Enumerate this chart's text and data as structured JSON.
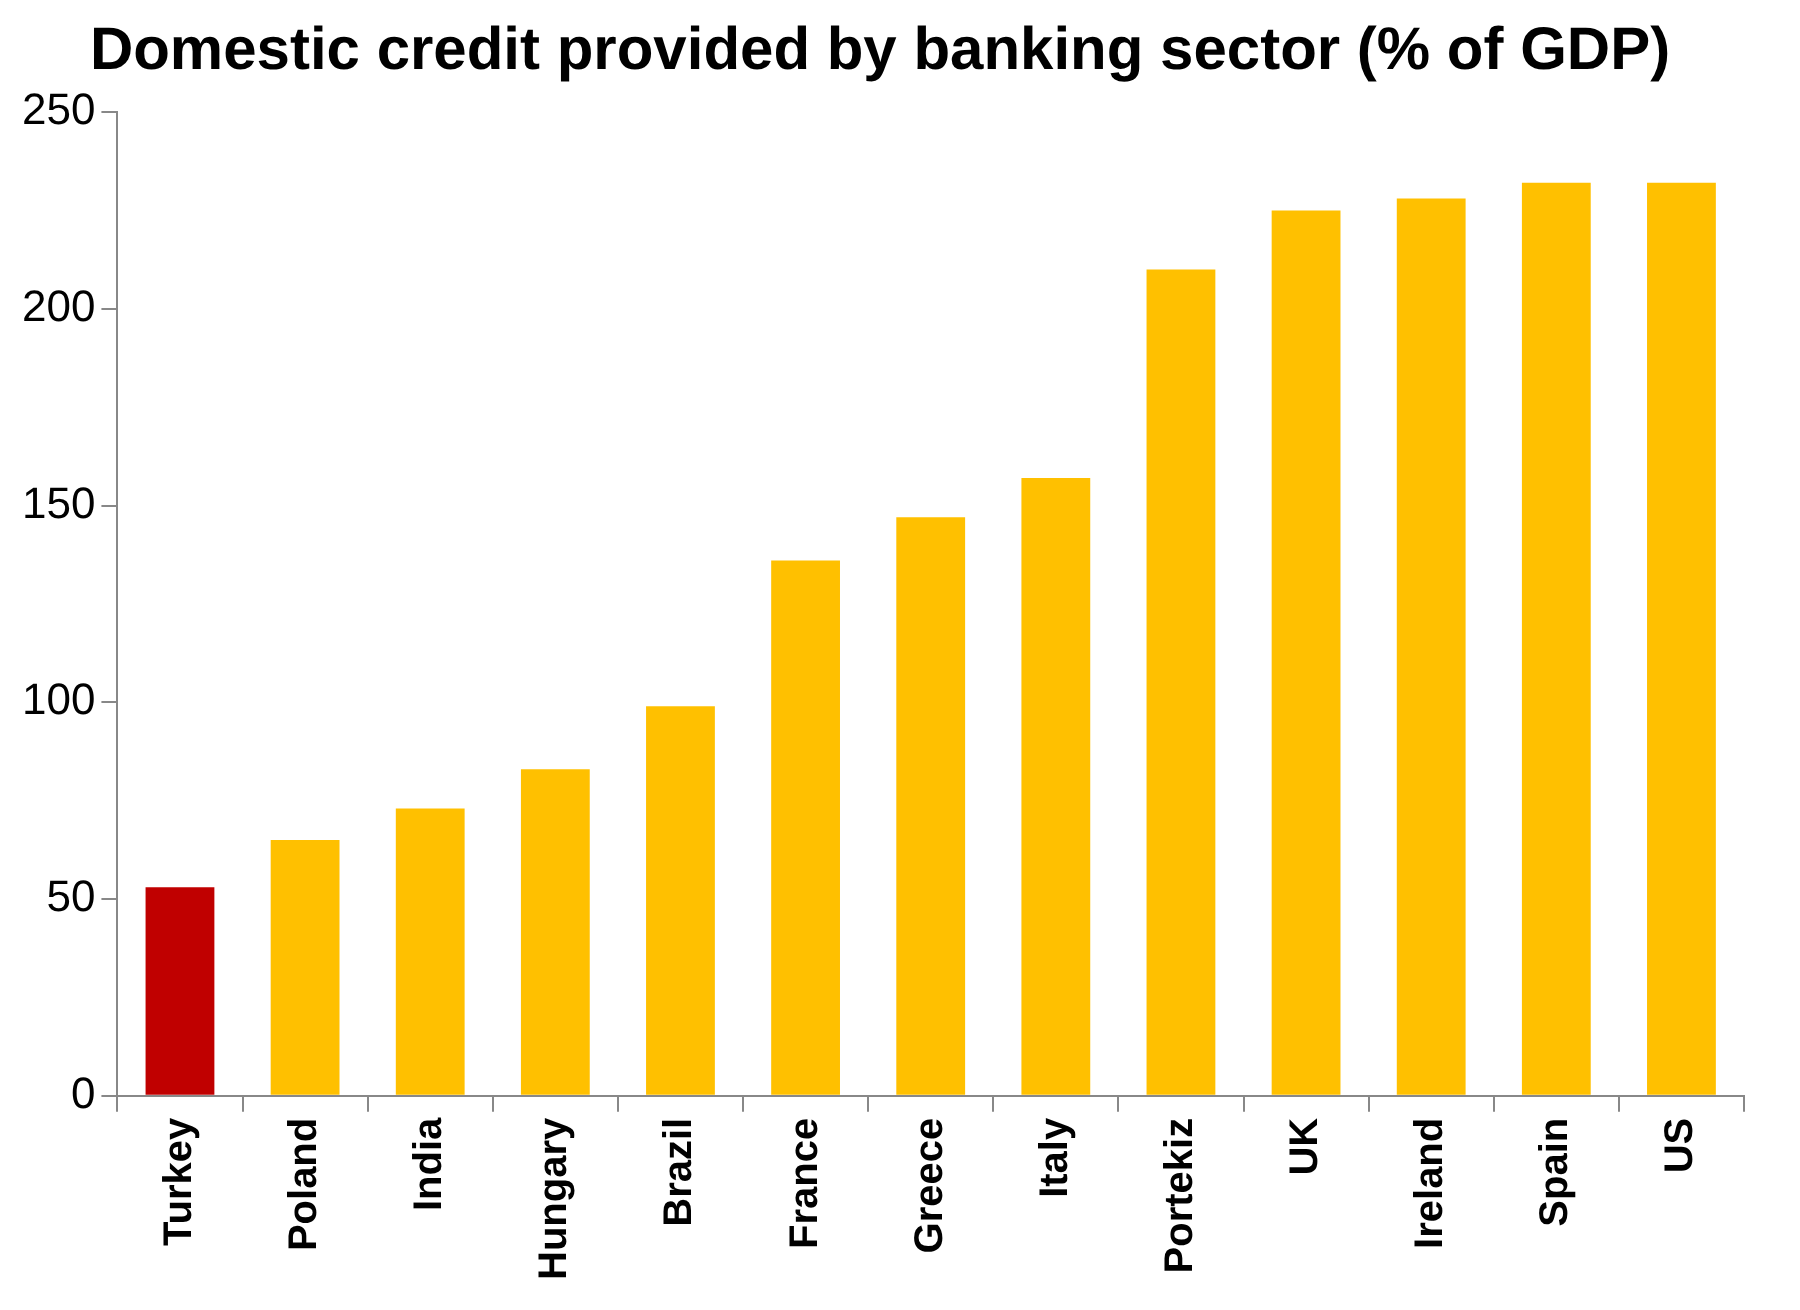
{
  "chart_data": {
    "type": "bar",
    "title": "Domestic credit provided by banking sector (% of GDP)",
    "categories": [
      "Turkey",
      "Poland",
      "India",
      "Hungary",
      "Brazil",
      "France",
      "Greece",
      "Italy",
      "Portekiz",
      "UK",
      "Ireland",
      "Spain",
      "US"
    ],
    "values": [
      53,
      65,
      73,
      83,
      99,
      136,
      147,
      157,
      210,
      225,
      228,
      232,
      232
    ],
    "colors": [
      "#c00000",
      "#ffc000",
      "#ffc000",
      "#ffc000",
      "#ffc000",
      "#ffc000",
      "#ffc000",
      "#ffc000",
      "#ffc000",
      "#ffc000",
      "#ffc000",
      "#ffc000",
      "#ffc000"
    ],
    "ylim": [
      0,
      250
    ],
    "yticks": [
      0,
      50,
      100,
      150,
      200,
      250
    ],
    "grid": false,
    "legend": false
  }
}
